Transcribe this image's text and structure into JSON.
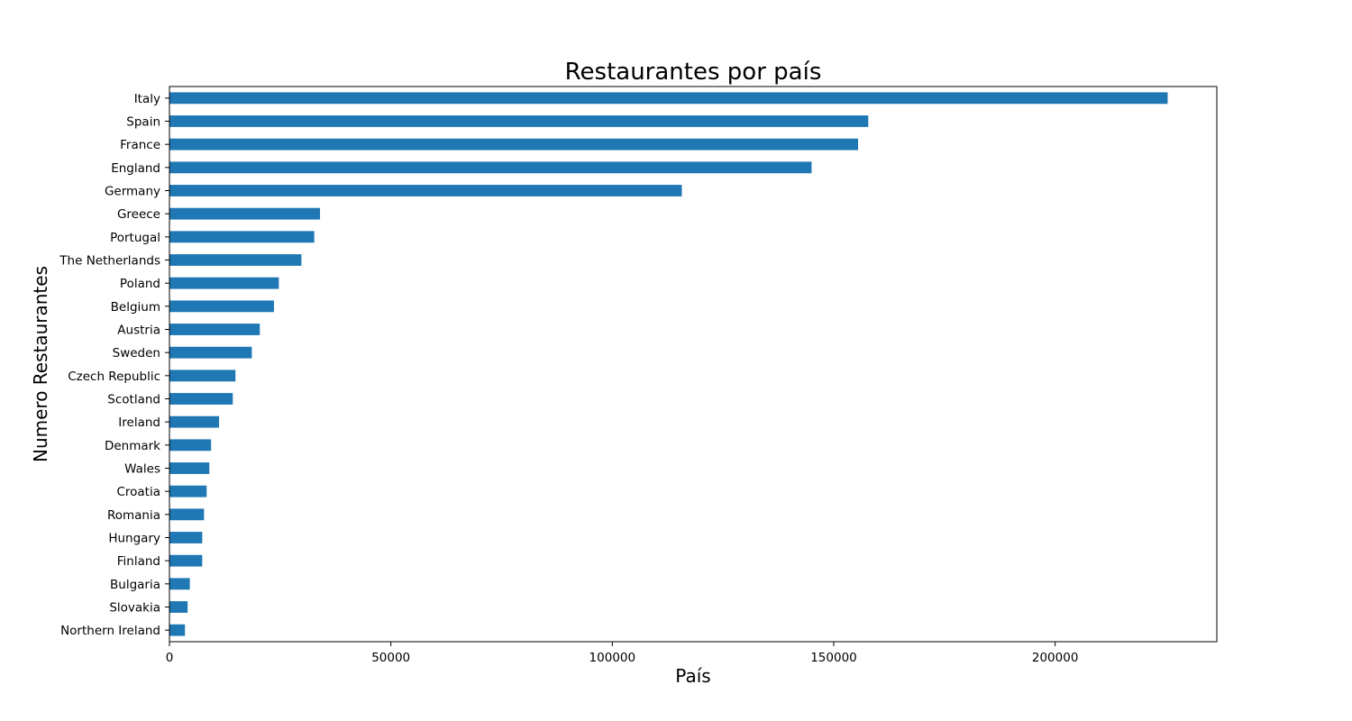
{
  "chart_data": {
    "type": "bar",
    "orientation": "horizontal",
    "title": "Restaurantes por país",
    "xlabel": "País",
    "ylabel": "Numero Restaurantes",
    "xlim": [
      0,
      236500
    ],
    "xticks": [
      0,
      50000,
      100000,
      150000,
      200000
    ],
    "grid": false,
    "legend": "none",
    "bar_color": "#1f77b4",
    "categories": [
      "Italy",
      "Spain",
      "France",
      "England",
      "Germany",
      "Greece",
      "Portugal",
      "The Netherlands",
      "Poland",
      "Belgium",
      "Austria",
      "Sweden",
      "Czech Republic",
      "Scotland",
      "Ireland",
      "Denmark",
      "Wales",
      "Croatia",
      "Romania",
      "Hungary",
      "Finland",
      "Bulgaria",
      "Slovakia",
      "Northern Ireland"
    ],
    "values": [
      225400,
      157800,
      155500,
      145000,
      115700,
      34000,
      32700,
      29800,
      24700,
      23600,
      20400,
      18600,
      14900,
      14300,
      11200,
      9400,
      9000,
      8400,
      7800,
      7400,
      7400,
      4600,
      4100,
      3500
    ]
  }
}
